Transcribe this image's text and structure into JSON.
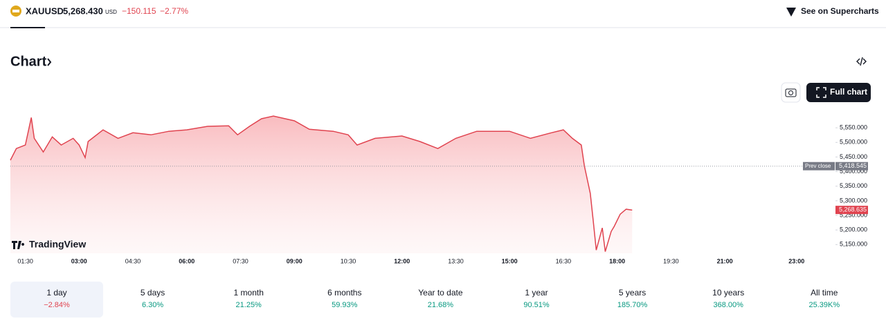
{
  "header": {
    "symbol": "XAUUSD",
    "price": "5,268.430",
    "currency": "USD",
    "change": "−150.115",
    "change_percent": "−2.77%",
    "supercharts": "See on Supercharts"
  },
  "section_title": "Chart",
  "full_chart": "Full chart",
  "brand": "TradingView",
  "chart_data": {
    "type": "line",
    "color": "#e0434f",
    "x": [
      "01:05",
      "01:15",
      "01:30",
      "01:40",
      "01:45",
      "02:00",
      "02:15",
      "02:30",
      "02:50",
      "03:00",
      "03:10",
      "03:15",
      "03:40",
      "04:05",
      "04:30",
      "05:00",
      "05:30",
      "06:00",
      "06:35",
      "07:10",
      "07:25",
      "07:45",
      "08:05",
      "08:25",
      "09:00",
      "09:25",
      "10:05",
      "10:30",
      "10:45",
      "11:15",
      "12:00",
      "12:30",
      "13:00",
      "13:30",
      "14:05",
      "15:00",
      "15:35",
      "16:10",
      "16:30",
      "16:45",
      "17:00",
      "17:05",
      "17:15",
      "17:20",
      "17:25",
      "17:35",
      "17:40",
      "17:50",
      "17:55",
      "18:05",
      "18:15",
      "18:25"
    ],
    "values": [
      5439,
      5479,
      5491,
      5585,
      5514,
      5467,
      5519,
      5491,
      5514,
      5491,
      5448,
      5503,
      5543,
      5514,
      5533,
      5526,
      5538,
      5543,
      5555,
      5557,
      5526,
      5555,
      5581,
      5590,
      5574,
      5545,
      5538,
      5526,
      5491,
      5514,
      5522,
      5503,
      5479,
      5514,
      5538,
      5538,
      5514,
      5533,
      5543,
      5514,
      5491,
      5420,
      5325,
      5230,
      5131,
      5207,
      5126,
      5195,
      5212,
      5254,
      5271,
      5268
    ],
    "xlim": [
      "01:05",
      "23:35"
    ],
    "xticks": [
      "01:30",
      "03:00",
      "04:30",
      "06:00",
      "07:30",
      "09:00",
      "10:30",
      "12:00",
      "13:30",
      "15:00",
      "16:30",
      "18:00",
      "19:30",
      "21:00",
      "23:00"
    ],
    "ylim": [
      5120,
      5600
    ],
    "yticks": [
      {
        "value": 5150,
        "label": "5,150.000"
      },
      {
        "value": 5200,
        "label": "5,200.000"
      },
      {
        "value": 5250,
        "label": "5,250.000"
      },
      {
        "value": 5300,
        "label": "5,300.000"
      },
      {
        "value": 5350,
        "label": "5,350.000"
      },
      {
        "value": 5400,
        "label": "5,400.000"
      },
      {
        "value": 5450,
        "label": "5,450.000"
      },
      {
        "value": 5500,
        "label": "5,500.000"
      },
      {
        "value": 5550,
        "label": "5,550.000"
      }
    ],
    "prev_close": {
      "name": "Prev close",
      "value": 5418.545,
      "label": "5,418.545"
    },
    "last": {
      "value": 5268.635,
      "label": "5,268.635"
    }
  },
  "ranges": [
    {
      "label": "1 day",
      "change": "−2.84%"
    },
    {
      "label": "5 days",
      "change": "6.30%"
    },
    {
      "label": "1 month",
      "change": "21.25%"
    },
    {
      "label": "6 months",
      "change": "59.93%"
    },
    {
      "label": "Year to date",
      "change": "21.68%"
    },
    {
      "label": "1 year",
      "change": "90.51%"
    },
    {
      "label": "5 years",
      "change": "185.70%"
    },
    {
      "label": "10 years",
      "change": "368.00%"
    },
    {
      "label": "All time",
      "change": "25.39K%"
    }
  ]
}
